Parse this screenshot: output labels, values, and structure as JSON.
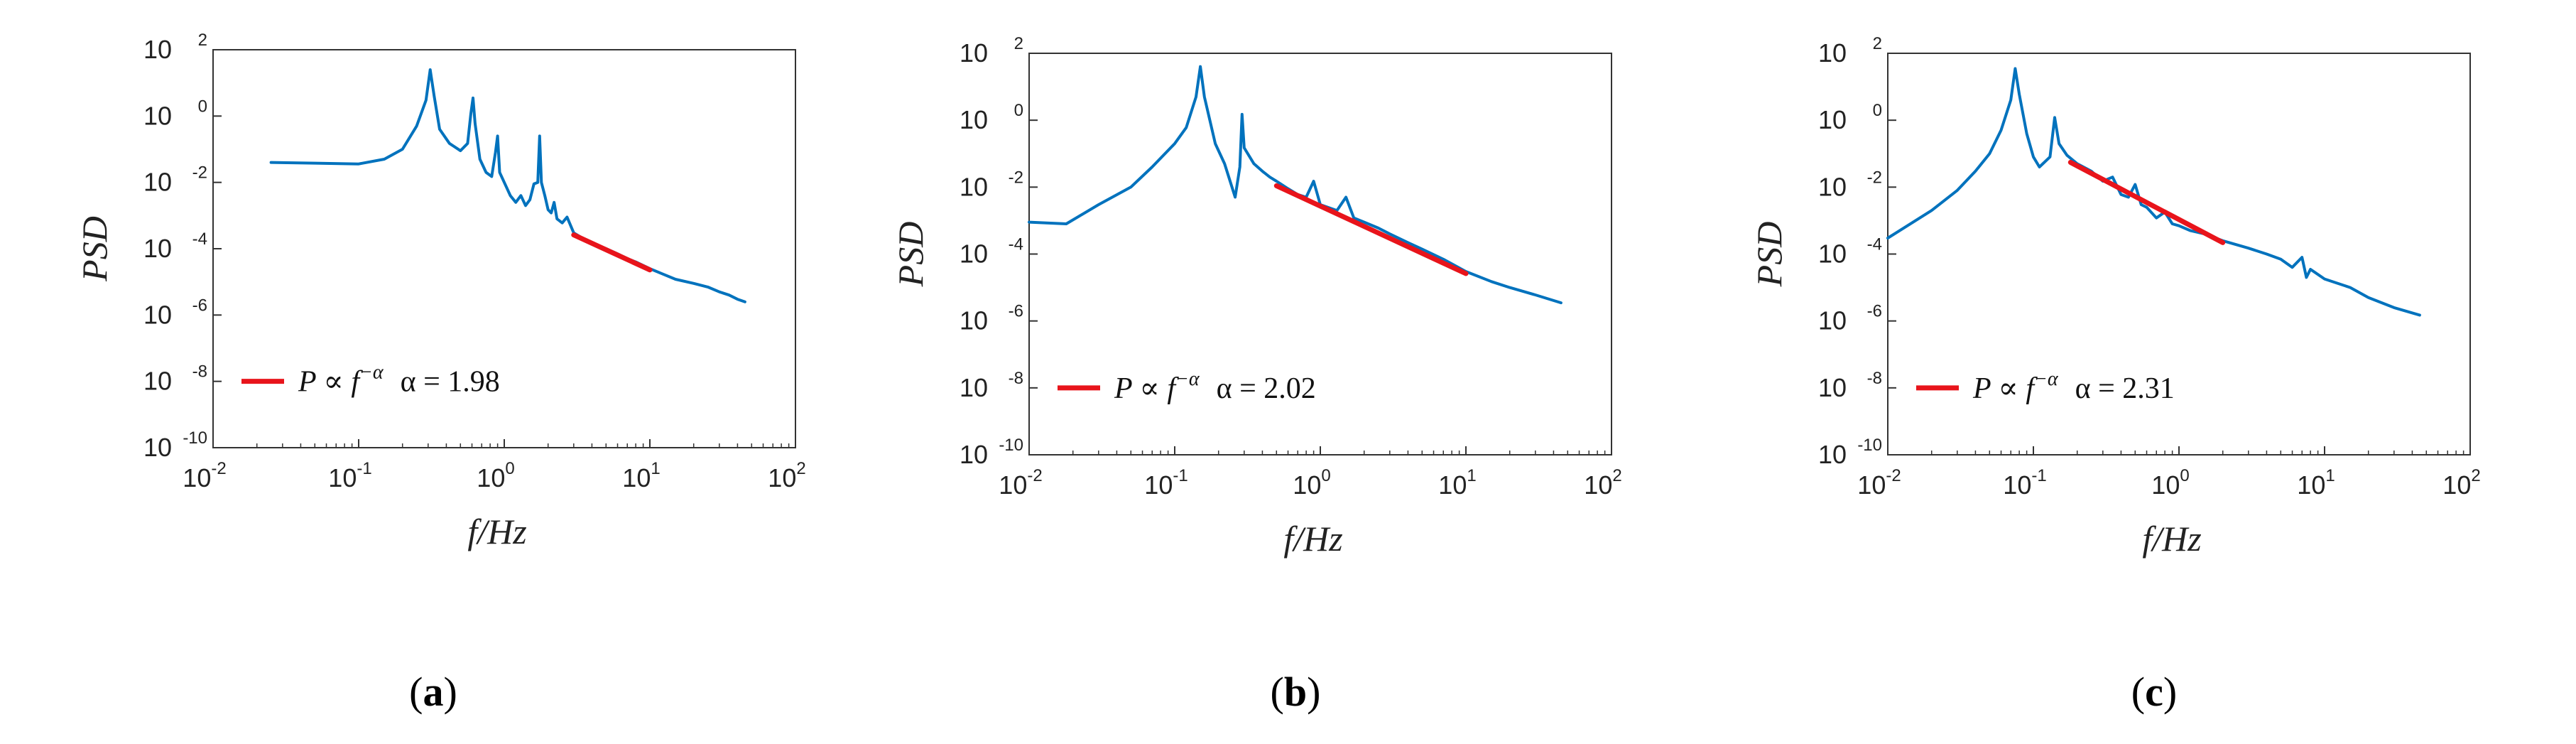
{
  "colors": {
    "psd_line": "#0072BD",
    "fit_line": "#E8141B",
    "axis": "#333333"
  },
  "chart_data": [
    {
      "type": "line",
      "panel_label": "a",
      "xlabel": "f/Hz",
      "ylabel": "PSD",
      "xscale": "log",
      "yscale": "log",
      "xlim": [
        0.01,
        100
      ],
      "ylim": [
        1e-10,
        100
      ],
      "x_ticks": [
        {
          "base": "10",
          "exp": "-2"
        },
        {
          "base": "10",
          "exp": "-1"
        },
        {
          "base": "10",
          "exp": "0"
        },
        {
          "base": "10",
          "exp": "1"
        },
        {
          "base": "10",
          "exp": "2"
        }
      ],
      "y_ticks": [
        {
          "base": "10",
          "exp": "-10"
        },
        {
          "base": "10",
          "exp": "-8"
        },
        {
          "base": "10",
          "exp": "-6"
        },
        {
          "base": "10",
          "exp": "-4"
        },
        {
          "base": "10",
          "exp": "-2"
        },
        {
          "base": "10",
          "exp": "0"
        },
        {
          "base": "10",
          "exp": "2"
        }
      ],
      "legend": {
        "position": "lower-left",
        "label_prefix": "P ∝ f",
        "label_exp": "−α",
        "alpha_text": "α = 1.98"
      },
      "series": [
        {
          "name": "PSD",
          "points": [
            [
              0.025,
              0.04
            ],
            [
              0.05,
              0.038
            ],
            [
              0.1,
              0.036
            ],
            [
              0.15,
              0.05
            ],
            [
              0.2,
              0.1
            ],
            [
              0.25,
              0.5
            ],
            [
              0.29,
              3
            ],
            [
              0.31,
              25
            ],
            [
              0.33,
              4
            ],
            [
              0.36,
              0.4
            ],
            [
              0.42,
              0.15
            ],
            [
              0.5,
              0.09
            ],
            [
              0.56,
              0.15
            ],
            [
              0.59,
              1.2
            ],
            [
              0.61,
              3.5
            ],
            [
              0.63,
              0.6
            ],
            [
              0.68,
              0.05
            ],
            [
              0.75,
              0.02
            ],
            [
              0.82,
              0.015
            ],
            [
              0.87,
              0.08
            ],
            [
              0.9,
              0.25
            ],
            [
              0.93,
              0.02
            ],
            [
              1.0,
              0.01
            ],
            [
              1.1,
              0.004
            ],
            [
              1.2,
              0.0025
            ],
            [
              1.3,
              0.004
            ],
            [
              1.4,
              0.002
            ],
            [
              1.5,
              0.003
            ],
            [
              1.6,
              0.009
            ],
            [
              1.7,
              0.01
            ],
            [
              1.75,
              0.25
            ],
            [
              1.8,
              0.01
            ],
            [
              1.9,
              0.004
            ],
            [
              2.0,
              0.0015
            ],
            [
              2.1,
              0.0012
            ],
            [
              2.2,
              0.0025
            ],
            [
              2.3,
              0.0008
            ],
            [
              2.5,
              0.0006
            ],
            [
              2.7,
              0.0009
            ],
            [
              3.0,
              0.0003
            ],
            [
              3.5,
              0.0002
            ],
            [
              4,
              0.00015
            ],
            [
              5,
              0.0001
            ],
            [
              6,
              7e-05
            ],
            [
              7,
              5e-05
            ],
            [
              8,
              4e-05
            ],
            [
              10,
              2.5e-05
            ],
            [
              12,
              1.8e-05
            ],
            [
              15,
              1.2e-05
            ],
            [
              20,
              9e-06
            ],
            [
              25,
              7e-06
            ],
            [
              30,
              5e-06
            ],
            [
              35,
              4e-06
            ],
            [
              40,
              3e-06
            ],
            [
              45,
              2.5e-06
            ]
          ]
        },
        {
          "name": "fit",
          "points": [
            [
              3.0,
              0.00026
            ],
            [
              10,
              2.3e-05
            ]
          ]
        }
      ]
    },
    {
      "type": "line",
      "panel_label": "b",
      "xlabel": "f/Hz",
      "ylabel": "PSD",
      "xscale": "log",
      "yscale": "log",
      "xlim": [
        0.01,
        100
      ],
      "ylim": [
        1e-10,
        100
      ],
      "x_ticks": [
        {
          "base": "10",
          "exp": "-2"
        },
        {
          "base": "10",
          "exp": "-1"
        },
        {
          "base": "10",
          "exp": "0"
        },
        {
          "base": "10",
          "exp": "1"
        },
        {
          "base": "10",
          "exp": "2"
        }
      ],
      "y_ticks": [
        {
          "base": "10",
          "exp": "-10"
        },
        {
          "base": "10",
          "exp": "-8"
        },
        {
          "base": "10",
          "exp": "-6"
        },
        {
          "base": "10",
          "exp": "-4"
        },
        {
          "base": "10",
          "exp": "-2"
        },
        {
          "base": "10",
          "exp": "0"
        },
        {
          "base": "10",
          "exp": "2"
        }
      ],
      "legend": {
        "position": "lower-left",
        "label_prefix": "P ∝ f",
        "label_exp": "−α",
        "alpha_text": "α = 2.02"
      },
      "series": [
        {
          "name": "PSD",
          "points": [
            [
              0.01,
              0.0009
            ],
            [
              0.018,
              0.0008
            ],
            [
              0.03,
              0.003
            ],
            [
              0.05,
              0.01
            ],
            [
              0.07,
              0.04
            ],
            [
              0.1,
              0.2
            ],
            [
              0.12,
              0.6
            ],
            [
              0.14,
              5
            ],
            [
              0.15,
              40
            ],
            [
              0.16,
              5
            ],
            [
              0.19,
              0.2
            ],
            [
              0.22,
              0.05
            ],
            [
              0.26,
              0.005
            ],
            [
              0.28,
              0.04
            ],
            [
              0.29,
              1.5
            ],
            [
              0.3,
              0.15
            ],
            [
              0.35,
              0.05
            ],
            [
              0.4,
              0.03
            ],
            [
              0.45,
              0.02
            ],
            [
              0.5,
              0.015
            ],
            [
              0.6,
              0.009
            ],
            [
              0.7,
              0.006
            ],
            [
              0.8,
              0.005
            ],
            [
              0.9,
              0.015
            ],
            [
              1.0,
              0.003
            ],
            [
              1.3,
              0.002
            ],
            [
              1.5,
              0.005
            ],
            [
              1.7,
              0.0012
            ],
            [
              2.0,
              0.0009
            ],
            [
              2.5,
              0.0006
            ],
            [
              3,
              0.0004
            ],
            [
              4,
              0.00022
            ],
            [
              5,
              0.00014
            ],
            [
              7,
              7e-05
            ],
            [
              10,
              3e-05
            ],
            [
              15,
              1.5e-05
            ],
            [
              20,
              1e-05
            ],
            [
              30,
              6e-06
            ],
            [
              45,
              3.5e-06
            ]
          ]
        },
        {
          "name": "fit",
          "points": [
            [
              0.5,
              0.011
            ],
            [
              10,
              2.6e-05
            ]
          ]
        }
      ]
    },
    {
      "type": "line",
      "panel_label": "c",
      "xlabel": "f/Hz",
      "ylabel": "PSD",
      "xscale": "log",
      "yscale": "log",
      "xlim": [
        0.01,
        100
      ],
      "ylim": [
        1e-10,
        100
      ],
      "x_ticks": [
        {
          "base": "10",
          "exp": "-2"
        },
        {
          "base": "10",
          "exp": "-1"
        },
        {
          "base": "10",
          "exp": "0"
        },
        {
          "base": "10",
          "exp": "1"
        },
        {
          "base": "10",
          "exp": "2"
        }
      ],
      "y_ticks": [
        {
          "base": "10",
          "exp": "-10"
        },
        {
          "base": "10",
          "exp": "-8"
        },
        {
          "base": "10",
          "exp": "-6"
        },
        {
          "base": "10",
          "exp": "-4"
        },
        {
          "base": "10",
          "exp": "-2"
        },
        {
          "base": "10",
          "exp": "0"
        },
        {
          "base": "10",
          "exp": "2"
        }
      ],
      "legend": {
        "position": "lower-left",
        "label_prefix": "P ∝ f",
        "label_exp": "−α",
        "alpha_text": "α = 2.31"
      },
      "series": [
        {
          "name": "PSD",
          "points": [
            [
              0.01,
              0.0003
            ],
            [
              0.02,
              0.002
            ],
            [
              0.03,
              0.008
            ],
            [
              0.04,
              0.03
            ],
            [
              0.05,
              0.1
            ],
            [
              0.06,
              0.5
            ],
            [
              0.07,
              4
            ],
            [
              0.075,
              35
            ],
            [
              0.08,
              6
            ],
            [
              0.09,
              0.4
            ],
            [
              0.1,
              0.08
            ],
            [
              0.11,
              0.04
            ],
            [
              0.13,
              0.08
            ],
            [
              0.14,
              1.2
            ],
            [
              0.15,
              0.2
            ],
            [
              0.17,
              0.09
            ],
            [
              0.2,
              0.05
            ],
            [
              0.25,
              0.03
            ],
            [
              0.3,
              0.015
            ],
            [
              0.35,
              0.02
            ],
            [
              0.4,
              0.006
            ],
            [
              0.45,
              0.005
            ],
            [
              0.5,
              0.012
            ],
            [
              0.55,
              0.003
            ],
            [
              0.6,
              0.0025
            ],
            [
              0.7,
              0.0012
            ],
            [
              0.8,
              0.0018
            ],
            [
              0.9,
              0.0008
            ],
            [
              1.0,
              0.0007
            ],
            [
              1.2,
              0.0005
            ],
            [
              1.5,
              0.0004
            ],
            [
              2,
              0.00025
            ],
            [
              3,
              0.00015
            ],
            [
              4,
              0.0001
            ],
            [
              5,
              7e-05
            ],
            [
              6,
              4e-05
            ],
            [
              7,
              8e-05
            ],
            [
              7.5,
              2e-05
            ],
            [
              8,
              3.5e-05
            ],
            [
              10,
              1.8e-05
            ],
            [
              15,
              1e-05
            ],
            [
              20,
              5e-06
            ],
            [
              30,
              2.5e-06
            ],
            [
              45,
              1.5e-06
            ]
          ]
        },
        {
          "name": "fit",
          "points": [
            [
              0.18,
              0.055
            ],
            [
              2.0,
              0.00022
            ]
          ]
        }
      ]
    }
  ]
}
